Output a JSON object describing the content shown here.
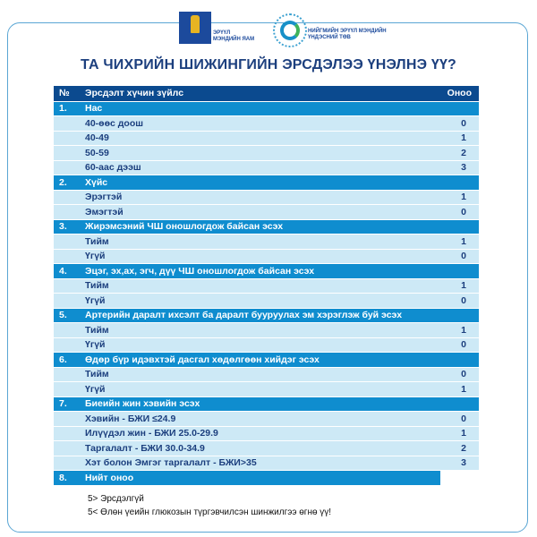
{
  "logos": {
    "ministry": {
      "emblem_text": "МОНГОЛ УЛСЫН ЗАСГИЙН ГАЗАР",
      "name_line1": "ЭРҮҮЛ",
      "name_line2": "МЭНДИЙН ЯАМ"
    },
    "center": {
      "name_line1": "НИЙГМИЙН ЭРҮҮЛ МЭНДИЙН",
      "name_line2": "ҮНДЭСНИЙ ТӨВ"
    }
  },
  "title": "ТА ЧИХРИЙН ШИЖИНГИЙН ЭРСДЭЛЭЭ ҮНЭЛНЭ ҮҮ?",
  "table": {
    "headers": {
      "num": "№",
      "factor": "Эрсдэлт хүчин зүйлс",
      "score": "Оноо"
    },
    "sections": [
      {
        "num": "1.",
        "label": "Нас",
        "items": [
          {
            "label": "40-өөс доош",
            "score": "0"
          },
          {
            "label": "40-49",
            "score": "1"
          },
          {
            "label": "50-59",
            "score": "2"
          },
          {
            "label": "60-аас дээш",
            "score": "3"
          }
        ]
      },
      {
        "num": "2.",
        "label": "Хүйс",
        "items": [
          {
            "label": "Эрэгтэй",
            "score": "1"
          },
          {
            "label": "Эмэгтэй",
            "score": "0"
          }
        ]
      },
      {
        "num": "3.",
        "label": "Жирэмсэний ЧШ оношлогдож байсан эсэх",
        "items": [
          {
            "label": "Тийм",
            "score": "1"
          },
          {
            "label": "Үгүй",
            "score": "0"
          }
        ]
      },
      {
        "num": "4.",
        "label": "Эцэг, эх,ах, эгч, дүү ЧШ оношлогдож байсан эсэх",
        "items": [
          {
            "label": "Тийм",
            "score": "1"
          },
          {
            "label": "Үгүй",
            "score": "0"
          }
        ]
      },
      {
        "num": "5.",
        "label": "Артерийн даралт ихсэлт ба даралт бууруулах эм хэрэглэж буй эсэх",
        "items": [
          {
            "label": "Тийм",
            "score": "1"
          },
          {
            "label": "Үгүй",
            "score": "0"
          }
        ]
      },
      {
        "num": "6.",
        "label": "Өдөр бүр идэвхтэй дасгал хөдөлгөөн хийдэг эсэх",
        "items": [
          {
            "label": "Тийм",
            "score": "0"
          },
          {
            "label": "Үгүй",
            "score": "1"
          }
        ]
      },
      {
        "num": "7.",
        "label": "Биеийн жин хэвийн эсэх",
        "items": [
          {
            "label": "Хэвийн - БЖИ ≤24.9",
            "score": "0"
          },
          {
            "label": "Илүүдэл жин - БЖИ 25.0-29.9",
            "score": "1"
          },
          {
            "label": "Таргалалт - БЖИ 30.0-34.9",
            "score": "2"
          },
          {
            "label": "Хэт болон Эмгэг таргалалт - БЖИ>35",
            "score": "3"
          }
        ]
      }
    ],
    "total": {
      "num": "8.",
      "label": "Нийт оноо"
    }
  },
  "notes": [
    "5> Эрсдэлгүй",
    "5< Өлөн үеийн глюкозын түргэвчилсэн шинжилгээ өгнө үү!"
  ],
  "colors": {
    "header": "#0b4a8f",
    "section": "#0f8dcf",
    "item": "#cde9f6",
    "title": "#1c3f7e"
  }
}
